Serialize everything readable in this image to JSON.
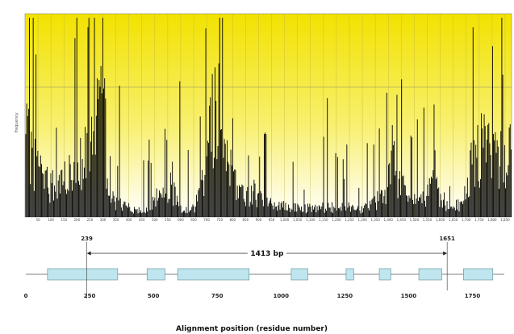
{
  "chart_data": {
    "type": "bar",
    "ylabel": "frequency",
    "xlabel": "Alignment position (residue number)",
    "histogram": {
      "x_range": [
        0,
        1875
      ],
      "tick_step": 50,
      "tick_labels": [
        "50",
        "100",
        "150",
        "200",
        "250",
        "300",
        "350",
        "400",
        "450",
        "500",
        "550",
        "600",
        "650",
        "700",
        "750",
        "800",
        "850",
        "900",
        "950",
        "1,000",
        "1,050",
        "1,100",
        "1,150",
        "1,200",
        "1,250",
        "1,300",
        "1,350",
        "1,400",
        "1,450",
        "1,500",
        "1,550",
        "1,600",
        "1,650",
        "1,700",
        "1,750",
        "1,800",
        "1,850"
      ],
      "profile": [
        [
          0,
          0.45
        ],
        [
          40,
          0.32
        ],
        [
          80,
          0.2
        ],
        [
          130,
          0.2
        ],
        [
          170,
          0.25
        ],
        [
          200,
          0.35
        ],
        [
          230,
          0.38
        ],
        [
          260,
          0.5
        ],
        [
          290,
          0.65
        ],
        [
          300,
          0.3
        ],
        [
          320,
          0.12
        ],
        [
          380,
          0.06
        ],
        [
          430,
          0.04
        ],
        [
          480,
          0.05
        ],
        [
          520,
          0.15
        ],
        [
          560,
          0.18
        ],
        [
          600,
          0.05
        ],
        [
          650,
          0.05
        ],
        [
          680,
          0.2
        ],
        [
          710,
          0.55
        ],
        [
          740,
          0.72
        ],
        [
          770,
          0.5
        ],
        [
          800,
          0.2
        ],
        [
          850,
          0.12
        ],
        [
          880,
          0.15
        ],
        [
          920,
          0.08
        ],
        [
          1000,
          0.06
        ],
        [
          1100,
          0.05
        ],
        [
          1200,
          0.06
        ],
        [
          1300,
          0.05
        ],
        [
          1380,
          0.12
        ],
        [
          1420,
          0.3
        ],
        [
          1450,
          0.18
        ],
        [
          1480,
          0.1
        ],
        [
          1520,
          0.08
        ],
        [
          1570,
          0.2
        ],
        [
          1600,
          0.12
        ],
        [
          1640,
          0.05
        ],
        [
          1680,
          0.08
        ],
        [
          1720,
          0.3
        ],
        [
          1760,
          0.4
        ],
        [
          1800,
          0.38
        ],
        [
          1840,
          0.35
        ],
        [
          1875,
          0.45
        ]
      ]
    },
    "gene_map": {
      "x_range": [
        0,
        1875
      ],
      "tick_values": [
        0,
        250,
        500,
        750,
        1000,
        1250,
        1500,
        1750
      ],
      "tick_labels": [
        "0",
        "250",
        "500",
        "750",
        "1000",
        "1250",
        "1500",
        "1750"
      ],
      "span": {
        "start": 239,
        "end": 1651,
        "start_label": "239",
        "end_label": "1651",
        "length_label": "1413 bp"
      },
      "boxes": [
        {
          "start": 85,
          "end": 360
        },
        {
          "start": 475,
          "end": 545
        },
        {
          "start": 595,
          "end": 875
        },
        {
          "start": 1040,
          "end": 1105
        },
        {
          "start": 1255,
          "end": 1285
        },
        {
          "start": 1385,
          "end": 1430
        },
        {
          "start": 1540,
          "end": 1630
        },
        {
          "start": 1715,
          "end": 1830
        }
      ],
      "box_color": "#bfe6ee"
    }
  },
  "colors": {
    "panel_top": "#f2e200",
    "panel_bottom": "#ffffff",
    "bars": "#000000",
    "box_fill": "#bfe6ee",
    "box_stroke": "#5a8a90"
  }
}
